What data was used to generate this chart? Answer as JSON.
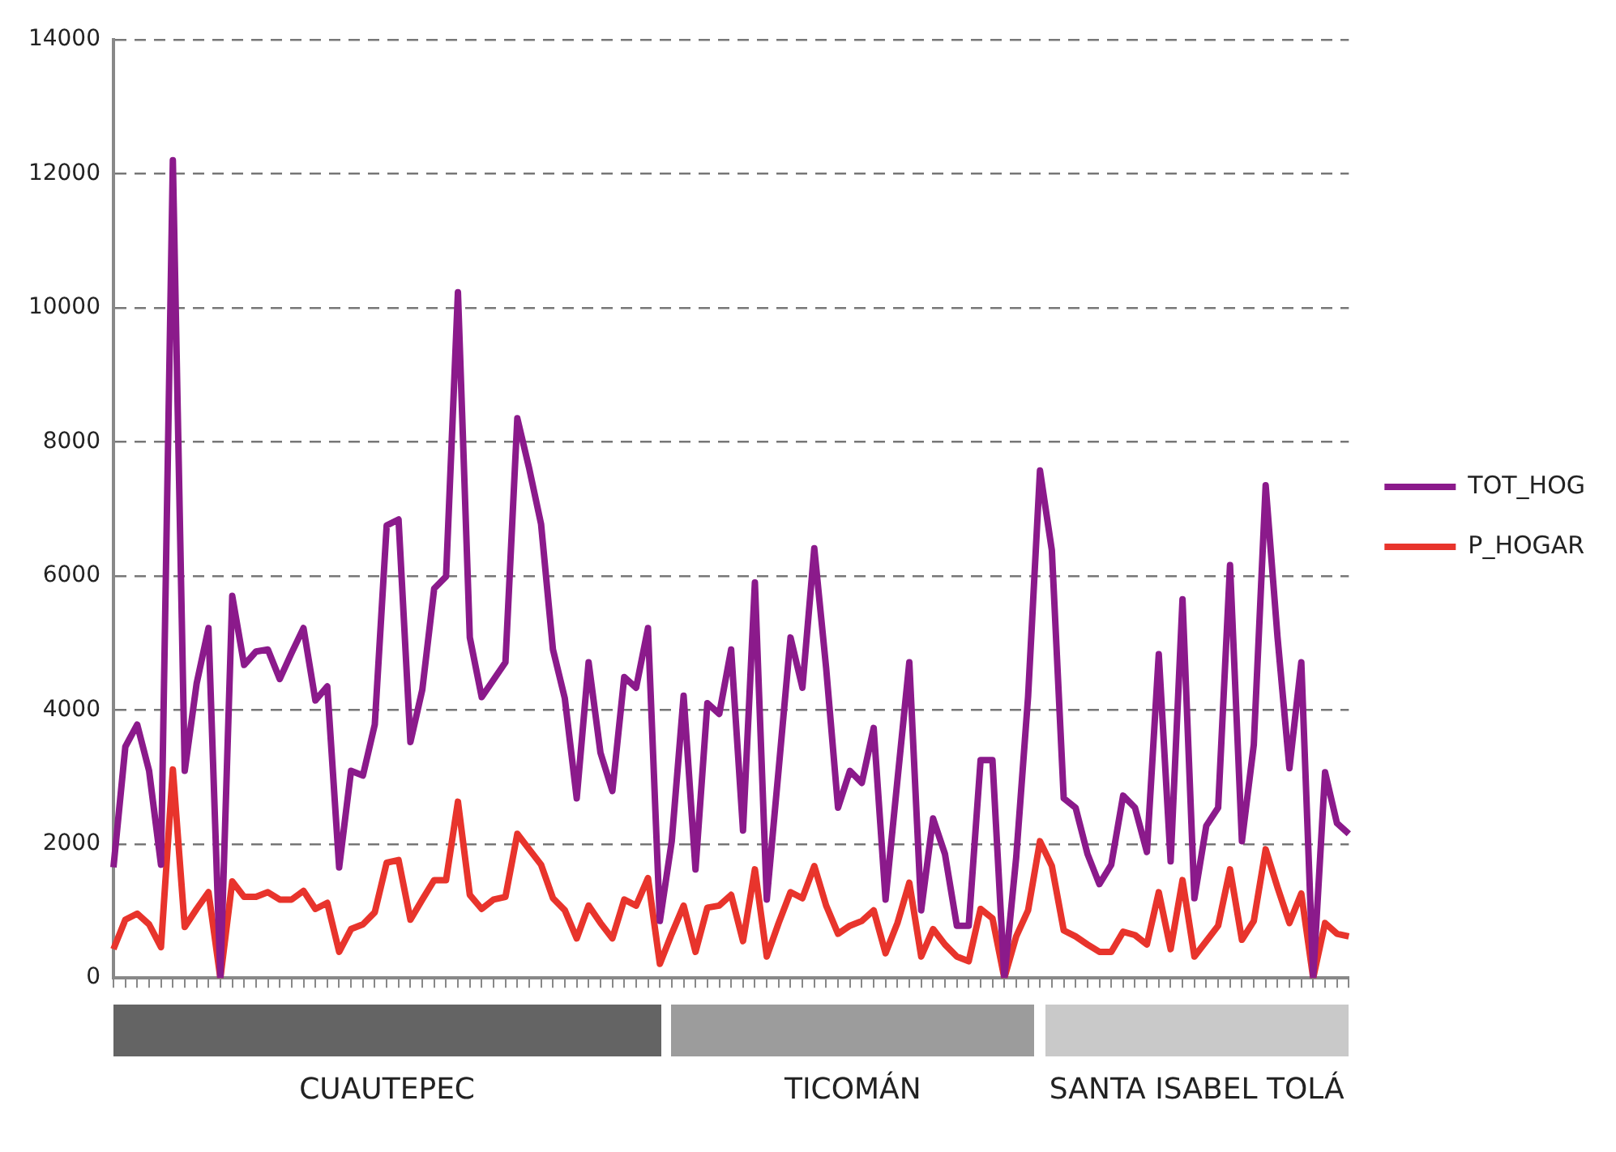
{
  "chart_data": {
    "type": "line",
    "categories": [
      null,
      null,
      null,
      null,
      null,
      null,
      null,
      null,
      null,
      null,
      null,
      null,
      null,
      null,
      null,
      null,
      null,
      null,
      null,
      null,
      null,
      null,
      null,
      null,
      null,
      null,
      null,
      null,
      null,
      null,
      null,
      null,
      null,
      null,
      null,
      null,
      null,
      null,
      null,
      null,
      null,
      null,
      null,
      null,
      null,
      null,
      null,
      null,
      null,
      null,
      null,
      null,
      null,
      null,
      null,
      null,
      null,
      null,
      null,
      null,
      null,
      null,
      null,
      null,
      null,
      null,
      null,
      null,
      null,
      null,
      null,
      null,
      null,
      null,
      null,
      null,
      null,
      null,
      null,
      null,
      null,
      null,
      null,
      null,
      null,
      null,
      null,
      null,
      null,
      null,
      null,
      null,
      null,
      null,
      null,
      null,
      null,
      null,
      null,
      null,
      null,
      null,
      null,
      null,
      null
    ],
    "series": [
      {
        "name": "TOT_HOG",
        "color": "#8b1a8b",
        "values": [
          1650,
          3450,
          3780,
          3090,
          1690,
          12200,
          3090,
          4390,
          5220,
          0,
          5700,
          4670,
          4870,
          4900,
          4460,
          4850,
          5220,
          4140,
          4350,
          1650,
          3090,
          3020,
          3780,
          6750,
          6840,
          3520,
          4300,
          5810,
          5990,
          10230,
          5080,
          4190,
          4450,
          4710,
          8350,
          7600,
          6770,
          4900,
          4170,
          2680,
          4710,
          3360,
          2790,
          4490,
          4330,
          5220,
          850,
          2040,
          4210,
          1620,
          4100,
          3940,
          4900,
          2200,
          5900,
          1170,
          3110,
          5080,
          4330,
          6410,
          4620,
          2540,
          3090,
          2910,
          3730,
          1170,
          2950,
          4710,
          1010,
          2380,
          1850,
          780,
          780,
          3250,
          3250,
          0,
          1800,
          4200,
          7570,
          6380,
          2680,
          2540,
          1850,
          1400,
          1690,
          2720,
          2540,
          1880,
          4830,
          1740,
          5650,
          1190,
          2270,
          2540,
          6160,
          2040,
          3480,
          7350,
          5080,
          3130,
          4710,
          0,
          3070,
          2310,
          2150
        ]
      },
      {
        "name": "P_HOGAR",
        "color": "#e8342c",
        "values": [
          430,
          870,
          960,
          800,
          460,
          3110,
          760,
          1030,
          1280,
          0,
          1440,
          1210,
          1210,
          1280,
          1170,
          1170,
          1300,
          1030,
          1120,
          390,
          730,
          800,
          980,
          1720,
          1760,
          870,
          1170,
          1460,
          1460,
          2630,
          1240,
          1030,
          1170,
          1210,
          2150,
          1920,
          1690,
          1190,
          1010,
          590,
          1080,
          820,
          590,
          1170,
          1080,
          1490,
          210,
          660,
          1080,
          390,
          1050,
          1080,
          1240,
          550,
          1620,
          320,
          820,
          1280,
          1190,
          1670,
          1080,
          660,
          780,
          850,
          1010,
          370,
          820,
          1420,
          320,
          730,
          500,
          320,
          250,
          1030,
          890,
          0,
          620,
          1010,
          2040,
          1670,
          710,
          620,
          500,
          390,
          390,
          690,
          640,
          500,
          1280,
          430,
          1460,
          320,
          550,
          780,
          1620,
          570,
          850,
          1920,
          1350,
          820,
          1260,
          0,
          820,
          660,
          620
        ]
      }
    ],
    "ylim": [
      0,
      14000
    ],
    "yticks": [
      0,
      2000,
      4000,
      6000,
      8000,
      10000,
      12000,
      14000
    ],
    "grid": "y",
    "legend": "right",
    "tick_labels": "y",
    "marker": "none",
    "line_style": "solid",
    "annotations": [
      "CUAUTEPEC",
      "TICOMÁN",
      "SANTA ISABEL TOLÁ"
    ]
  }
}
